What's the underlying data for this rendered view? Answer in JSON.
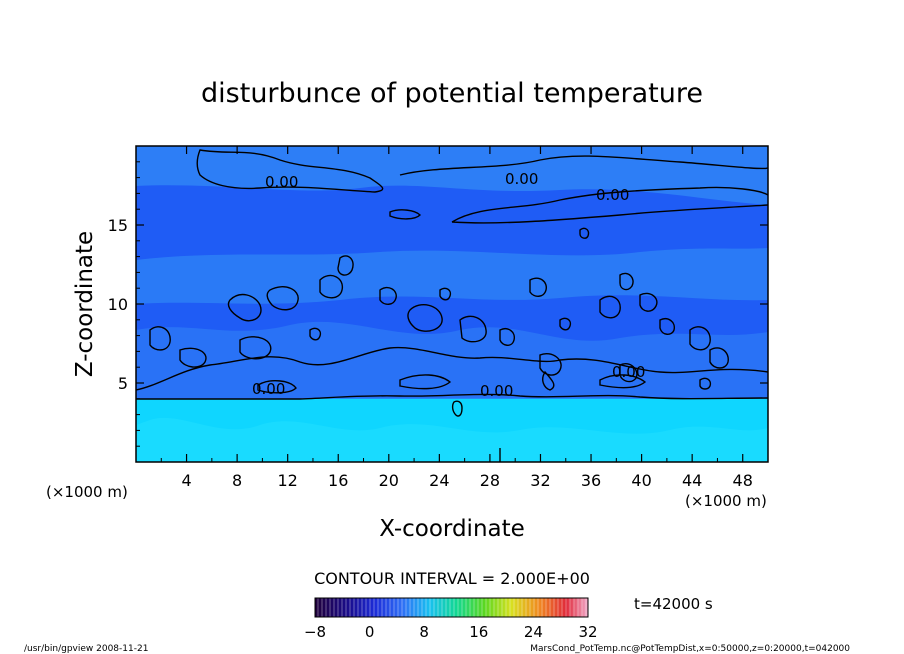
{
  "chart_data": {
    "type": "heatmap",
    "title": "disturbunce of potential temperature",
    "xlabel": "X-coordinate",
    "ylabel": "Z-coordinate",
    "x_unit_left": "(×1000 m)",
    "x_unit_right": "(×1000 m)",
    "xlim": [
      0,
      50
    ],
    "ylim": [
      0,
      20
    ],
    "x_ticks": [
      4,
      8,
      12,
      16,
      20,
      24,
      28,
      32,
      36,
      40,
      44,
      48
    ],
    "y_ticks": [
      5,
      10,
      15
    ],
    "grid": false,
    "contour_interval_text": "CONTOUR INTERVAL = 2.000E+00",
    "contour_label": "0.00",
    "contour_level": 0.0,
    "time_text": "t=42000 s",
    "colorbar": {
      "min": -8,
      "max": 32,
      "tick_labels": [
        "−8",
        "0",
        "8",
        "16",
        "24",
        "32"
      ],
      "tick_values": [
        -8,
        0,
        8,
        16,
        24,
        32
      ]
    },
    "bands": [
      {
        "z_from": 0,
        "z_to": 4,
        "value": 2.5,
        "color": "#0fd6ff"
      },
      {
        "z_from": 4,
        "z_to": 20,
        "value": 0.5,
        "color": "#1f5cf5"
      }
    ]
  },
  "footer": {
    "left": "/usr/bin/gpview  2008-11-21",
    "right": "MarsCond_PotTemp.nc@PotTempDist,x=0:50000,z=0:20000,t=042000"
  },
  "colors": {
    "deep_blue": "#1f5cf5",
    "light_blue": "#2f86f7",
    "cyan": "#0fd6ff"
  }
}
